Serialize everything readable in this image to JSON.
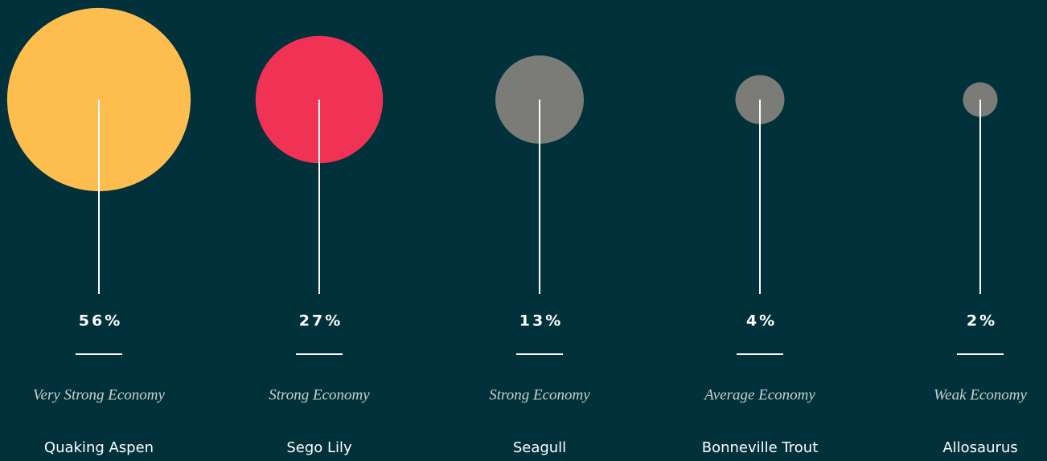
{
  "chart_data": {
    "type": "bubble",
    "categories": [
      "Quaking Aspen",
      "Sego Lily",
      "Seagull",
      "Bonneville Trout",
      "Allosaurus"
    ],
    "ratings": [
      "Very Strong Economy",
      "Strong Economy",
      "Strong Economy",
      "Average Economy",
      "Weak Economy"
    ],
    "values": [
      56,
      27,
      13,
      4,
      2
    ],
    "value_labels": [
      "56%",
      "27%",
      "13%",
      "4%",
      "2%"
    ],
    "colors": [
      "#fdbd4f",
      "#f03254",
      "#7b7b77",
      "#7b7b77",
      "#7b7b77"
    ]
  }
}
